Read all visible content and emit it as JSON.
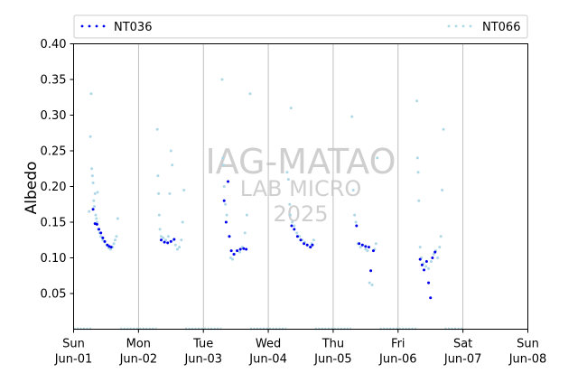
{
  "chart_data": {
    "type": "scatter",
    "ylabel": "Albedo",
    "ylim": [
      0,
      0.4
    ],
    "yticks": [
      "0.05",
      "0.10",
      "0.15",
      "0.20",
      "0.25",
      "0.30",
      "0.35",
      "0.40"
    ],
    "xlim": [
      0,
      7
    ],
    "xticks": [
      {
        "day": "Sun",
        "date": "Jun-01"
      },
      {
        "day": "Mon",
        "date": "Jun-02"
      },
      {
        "day": "Tue",
        "date": "Jun-03"
      },
      {
        "day": "Wed",
        "date": "Jun-04"
      },
      {
        "day": "Thu",
        "date": "Jun-05"
      },
      {
        "day": "Fri",
        "date": "Jun-06"
      },
      {
        "day": "Sat",
        "date": "Jun-07"
      },
      {
        "day": "Sun",
        "date": "Jun-08"
      }
    ],
    "vertical_gridlines": true,
    "legend_placement": "top",
    "watermark": [
      "IAG-MATAO",
      "LAB MICRO",
      "2025"
    ],
    "series": [
      {
        "name": "NT036",
        "color": "#0000ee",
        "points": [
          [
            0.3,
            0.168
          ],
          [
            0.33,
            0.148
          ],
          [
            0.36,
            0.147
          ],
          [
            0.39,
            0.14
          ],
          [
            0.42,
            0.135
          ],
          [
            0.45,
            0.128
          ],
          [
            0.48,
            0.123
          ],
          [
            0.52,
            0.118
          ],
          [
            0.55,
            0.116
          ],
          [
            0.58,
            0.115
          ],
          [
            1.35,
            0.125
          ],
          [
            1.4,
            0.122
          ],
          [
            1.45,
            0.121
          ],
          [
            1.5,
            0.123
          ],
          [
            1.55,
            0.126
          ],
          [
            2.32,
            0.18
          ],
          [
            2.35,
            0.15
          ],
          [
            2.38,
            0.207
          ],
          [
            2.4,
            0.13
          ],
          [
            2.43,
            0.11
          ],
          [
            2.47,
            0.105
          ],
          [
            2.52,
            0.11
          ],
          [
            2.57,
            0.112
          ],
          [
            2.62,
            0.113
          ],
          [
            2.66,
            0.112
          ],
          [
            3.36,
            0.145
          ],
          [
            3.4,
            0.14
          ],
          [
            3.45,
            0.13
          ],
          [
            3.5,
            0.125
          ],
          [
            3.55,
            0.12
          ],
          [
            3.6,
            0.118
          ],
          [
            3.65,
            0.115
          ],
          [
            3.68,
            0.118
          ],
          [
            4.36,
            0.145
          ],
          [
            4.4,
            0.12
          ],
          [
            4.45,
            0.118
          ],
          [
            4.5,
            0.116
          ],
          [
            4.55,
            0.115
          ],
          [
            4.58,
            0.082
          ],
          [
            4.62,
            0.11
          ],
          [
            5.34,
            0.098
          ],
          [
            5.37,
            0.09
          ],
          [
            5.4,
            0.083
          ],
          [
            5.44,
            0.095
          ],
          [
            5.47,
            0.065
          ],
          [
            5.5,
            0.044
          ],
          [
            5.53,
            0.1
          ],
          [
            5.57,
            0.108
          ]
        ]
      },
      {
        "name": "NT066",
        "color": "#add8e6",
        "points": [
          [
            0.24,
            0.165
          ],
          [
            0.26,
            0.27
          ],
          [
            0.27,
            0.33
          ],
          [
            0.28,
            0.225
          ],
          [
            0.29,
            0.215
          ],
          [
            0.3,
            0.205
          ],
          [
            0.31,
            0.18
          ],
          [
            0.32,
            0.172
          ],
          [
            0.33,
            0.19
          ],
          [
            0.34,
            0.16
          ],
          [
            0.35,
            0.155
          ],
          [
            0.36,
            0.15
          ],
          [
            0.37,
            0.192
          ],
          [
            0.38,
            0.14
          ],
          [
            0.4,
            0.135
          ],
          [
            0.42,
            0.13
          ],
          [
            0.45,
            0.125
          ],
          [
            0.48,
            0.122
          ],
          [
            0.51,
            0.118
          ],
          [
            0.54,
            0.114
          ],
          [
            0.57,
            0.112
          ],
          [
            0.6,
            0.115
          ],
          [
            0.62,
            0.12
          ],
          [
            0.64,
            0.125
          ],
          [
            0.66,
            0.13
          ],
          [
            0.68,
            0.155
          ],
          [
            1.29,
            0.28
          ],
          [
            1.3,
            0.215
          ],
          [
            1.31,
            0.19
          ],
          [
            1.32,
            0.16
          ],
          [
            1.33,
            0.14
          ],
          [
            1.35,
            0.13
          ],
          [
            1.38,
            0.128
          ],
          [
            1.42,
            0.125
          ],
          [
            1.46,
            0.13
          ],
          [
            1.48,
            0.19
          ],
          [
            1.5,
            0.25
          ],
          [
            1.52,
            0.23
          ],
          [
            1.54,
            0.125
          ],
          [
            1.57,
            0.118
          ],
          [
            1.6,
            0.112
          ],
          [
            1.63,
            0.115
          ],
          [
            1.66,
            0.125
          ],
          [
            1.68,
            0.15
          ],
          [
            1.7,
            0.195
          ],
          [
            2.29,
            0.35
          ],
          [
            2.3,
            0.24
          ],
          [
            2.31,
            0.23
          ],
          [
            2.32,
            0.2
          ],
          [
            2.34,
            0.175
          ],
          [
            2.36,
            0.16
          ],
          [
            2.4,
            0.13
          ],
          [
            2.42,
            0.1
          ],
          [
            2.45,
            0.098
          ],
          [
            2.48,
            0.105
          ],
          [
            2.52,
            0.11
          ],
          [
            2.56,
            0.108
          ],
          [
            2.6,
            0.115
          ],
          [
            2.64,
            0.135
          ],
          [
            2.67,
            0.16
          ],
          [
            2.72,
            0.33
          ],
          [
            3.29,
            0.22
          ],
          [
            3.31,
            0.21
          ],
          [
            3.33,
            0.175
          ],
          [
            3.34,
            0.16
          ],
          [
            3.35,
            0.31
          ],
          [
            3.37,
            0.15
          ],
          [
            3.4,
            0.145
          ],
          [
            3.44,
            0.135
          ],
          [
            3.48,
            0.13
          ],
          [
            3.52,
            0.125
          ],
          [
            3.56,
            0.122
          ],
          [
            3.6,
            0.118
          ],
          [
            3.64,
            0.115
          ],
          [
            3.67,
            0.12
          ],
          [
            3.7,
            0.125
          ],
          [
            4.29,
            0.298
          ],
          [
            4.31,
            0.195
          ],
          [
            4.33,
            0.16
          ],
          [
            4.35,
            0.15
          ],
          [
            4.38,
            0.12
          ],
          [
            4.42,
            0.115
          ],
          [
            4.46,
            0.118
          ],
          [
            4.5,
            0.112
          ],
          [
            4.53,
            0.11
          ],
          [
            4.56,
            0.065
          ],
          [
            4.6,
            0.062
          ],
          [
            4.64,
            0.112
          ],
          [
            4.66,
            0.12
          ],
          [
            4.68,
            0.24
          ],
          [
            5.29,
            0.32
          ],
          [
            5.3,
            0.24
          ],
          [
            5.31,
            0.22
          ],
          [
            5.32,
            0.18
          ],
          [
            5.34,
            0.115
          ],
          [
            5.36,
            0.1
          ],
          [
            5.39,
            0.092
          ],
          [
            5.43,
            0.088
          ],
          [
            5.47,
            0.085
          ],
          [
            5.51,
            0.095
          ],
          [
            5.55,
            0.105
          ],
          [
            5.58,
            0.11
          ],
          [
            5.61,
            0.1
          ],
          [
            5.64,
            0.115
          ],
          [
            5.66,
            0.13
          ],
          [
            5.68,
            0.195
          ],
          [
            5.7,
            0.28
          ]
        ]
      }
    ],
    "night_bands": [
      [
        0.0,
        0.28
      ],
      [
        0.72,
        1.28
      ],
      [
        1.72,
        2.28
      ],
      [
        2.72,
        3.28
      ],
      [
        3.72,
        4.28
      ],
      [
        4.72,
        5.28
      ],
      [
        5.72,
        6.0
      ]
    ],
    "night_value": 0.0
  }
}
